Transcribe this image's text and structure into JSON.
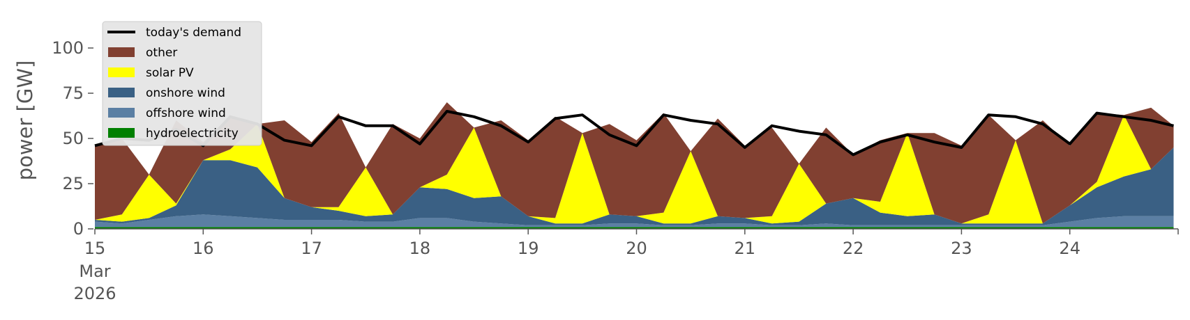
{
  "chart_data": {
    "type": "area",
    "stacked": true,
    "title": "",
    "xlabel": "",
    "ylabel": "power [GW]",
    "ylim": [
      0,
      118
    ],
    "xlim": [
      "2026-03-15",
      "2026-03-25"
    ],
    "yticks": [
      0,
      25,
      50,
      75,
      100
    ],
    "xticks": [
      {
        "date": "2026-03-15",
        "label": "15",
        "sub": [
          "Mar",
          "2026"
        ]
      },
      {
        "date": "2026-03-16",
        "label": "16"
      },
      {
        "date": "2026-03-17",
        "label": "17"
      },
      {
        "date": "2026-03-18",
        "label": "18"
      },
      {
        "date": "2026-03-19",
        "label": "19"
      },
      {
        "date": "2026-03-20",
        "label": "20"
      },
      {
        "date": "2026-03-21",
        "label": "21"
      },
      {
        "date": "2026-03-22",
        "label": "22"
      },
      {
        "date": "2026-03-23",
        "label": "23"
      },
      {
        "date": "2026-03-24",
        "label": "24"
      }
    ],
    "grid": false,
    "legend_position": "top-left",
    "x": [
      "2026-03-15 00:00",
      "2026-03-15 06:00",
      "2026-03-15 12:00",
      "2026-03-15 18:00",
      "2026-03-16 00:00",
      "2026-03-16 06:00",
      "2026-03-16 12:00",
      "2026-03-16 18:00",
      "2026-03-17 00:00",
      "2026-03-17 06:00",
      "2026-03-17 12:00",
      "2026-03-17 18:00",
      "2026-03-18 00:00",
      "2026-03-18 06:00",
      "2026-03-18 12:00",
      "2026-03-18 18:00",
      "2026-03-19 00:00",
      "2026-03-19 06:00",
      "2026-03-19 12:00",
      "2026-03-19 18:00",
      "2026-03-20 00:00",
      "2026-03-20 06:00",
      "2026-03-20 12:00",
      "2026-03-20 18:00",
      "2026-03-21 00:00",
      "2026-03-21 06:00",
      "2026-03-21 12:00",
      "2026-03-21 18:00",
      "2026-03-22 00:00",
      "2026-03-22 06:00",
      "2026-03-22 12:00",
      "2026-03-22 18:00",
      "2026-03-23 00:00",
      "2026-03-23 06:00",
      "2026-03-23 12:00",
      "2026-03-23 18:00",
      "2026-03-24 00:00",
      "2026-03-24 06:00",
      "2026-03-24 12:00",
      "2026-03-24 18:00",
      "2026-03-24 23:00"
    ],
    "series": [
      {
        "name": "hydroelectricity",
        "color": "#008000",
        "values": [
          1,
          1,
          1,
          1,
          1,
          1,
          1,
          1,
          1,
          1,
          1,
          1,
          1,
          1,
          1,
          1,
          1,
          1,
          1,
          1,
          1,
          1,
          1,
          1,
          1,
          1,
          1,
          1,
          1,
          1,
          1,
          1,
          1,
          1,
          1,
          1,
          1,
          1,
          1,
          1,
          1
        ]
      },
      {
        "name": "offshore wind",
        "color": "#5b7fa3",
        "values": [
          3,
          2,
          4,
          6,
          7,
          6,
          5,
          4,
          4,
          4,
          3,
          3,
          5,
          5,
          3,
          2,
          1,
          1,
          1,
          2,
          2,
          1,
          1,
          2,
          2,
          1,
          1,
          2,
          1,
          1,
          1,
          1,
          1,
          1,
          1,
          1,
          3,
          5,
          6,
          6,
          6
        ]
      },
      {
        "name": "onshore wind",
        "color": "#3a6084",
        "values": [
          1,
          1,
          1,
          6,
          30,
          31,
          28,
          12,
          7,
          5,
          3,
          4,
          17,
          16,
          13,
          15,
          5,
          1,
          1,
          5,
          4,
          1,
          1,
          4,
          3,
          1,
          2,
          11,
          15,
          7,
          5,
          6,
          1,
          1,
          1,
          1,
          9,
          17,
          22,
          26,
          38
        ]
      },
      {
        "name": "solar PV",
        "color": "#ffff00",
        "values": [
          0,
          4,
          24,
          1,
          0,
          6,
          24,
          0,
          0,
          2,
          27,
          0,
          0,
          8,
          39,
          0,
          0,
          3,
          50,
          0,
          0,
          6,
          40,
          0,
          0,
          4,
          32,
          0,
          0,
          6,
          46,
          0,
          0,
          5,
          46,
          0,
          0,
          3,
          34,
          0,
          0
        ]
      },
      {
        "name": "other",
        "color": "#814031",
        "values": [
          41,
          42,
          0,
          46,
          10,
          18,
          0,
          43,
          36,
          52,
          0,
          50,
          27,
          40,
          0,
          42,
          42,
          56,
          0,
          50,
          42,
          55,
          0,
          54,
          40,
          49,
          0,
          42,
          24,
          34,
          0,
          45,
          43,
          55,
          0,
          57,
          33,
          38,
          0,
          34,
          12
        ]
      }
    ],
    "demand": {
      "name": "today's demand",
      "color": "#000000",
      "values": [
        46,
        50,
        49,
        55,
        46,
        62,
        58,
        49,
        46,
        62,
        57,
        57,
        47,
        65,
        62,
        57,
        48,
        61,
        63,
        52,
        46,
        63,
        60,
        58,
        45,
        57,
        54,
        52,
        41,
        48,
        52,
        48,
        45,
        63,
        62,
        58,
        47,
        64,
        62,
        60,
        57
      ]
    }
  }
}
